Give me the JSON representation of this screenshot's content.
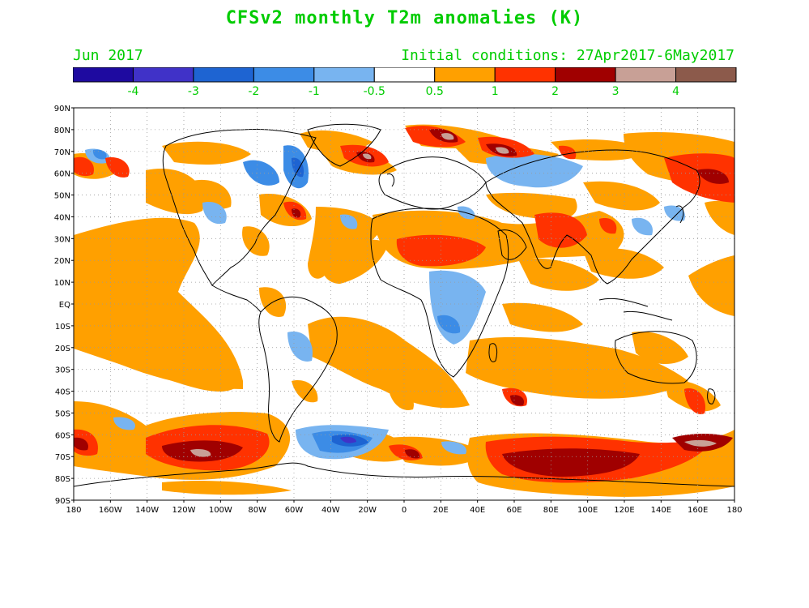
{
  "title": "CFSv2 monthly T2m anomalies (K)",
  "valid_month": "Jun 2017",
  "initial_conditions": "Initial conditions: 27Apr2017-6May2017",
  "text_color": "#00cc00",
  "colorbar": {
    "colors": [
      "#1e0aa0",
      "#4032c8",
      "#1e64d2",
      "#3c8ce6",
      "#78b4f0",
      "#ffffff",
      "#ffa000",
      "#ff3200",
      "#a00000",
      "#c8a096",
      "#8c5a4b"
    ],
    "labels": [
      "-4",
      "-3",
      "-2",
      "-1",
      "-0.5",
      "0.5",
      "1",
      "2",
      "3",
      "4"
    ]
  },
  "axes": {
    "lat_labels": [
      "90N",
      "80N",
      "70N",
      "60N",
      "50N",
      "40N",
      "30N",
      "20N",
      "10N",
      "EQ",
      "10S",
      "20S",
      "30S",
      "40S",
      "50S",
      "60S",
      "70S",
      "80S",
      "90S"
    ],
    "lon_labels": [
      "180",
      "160W",
      "140W",
      "120W",
      "100W",
      "80W",
      "60W",
      "40W",
      "20W",
      "0",
      "20E",
      "40E",
      "60E",
      "80E",
      "100E",
      "120E",
      "140E",
      "160E",
      "180"
    ]
  }
}
